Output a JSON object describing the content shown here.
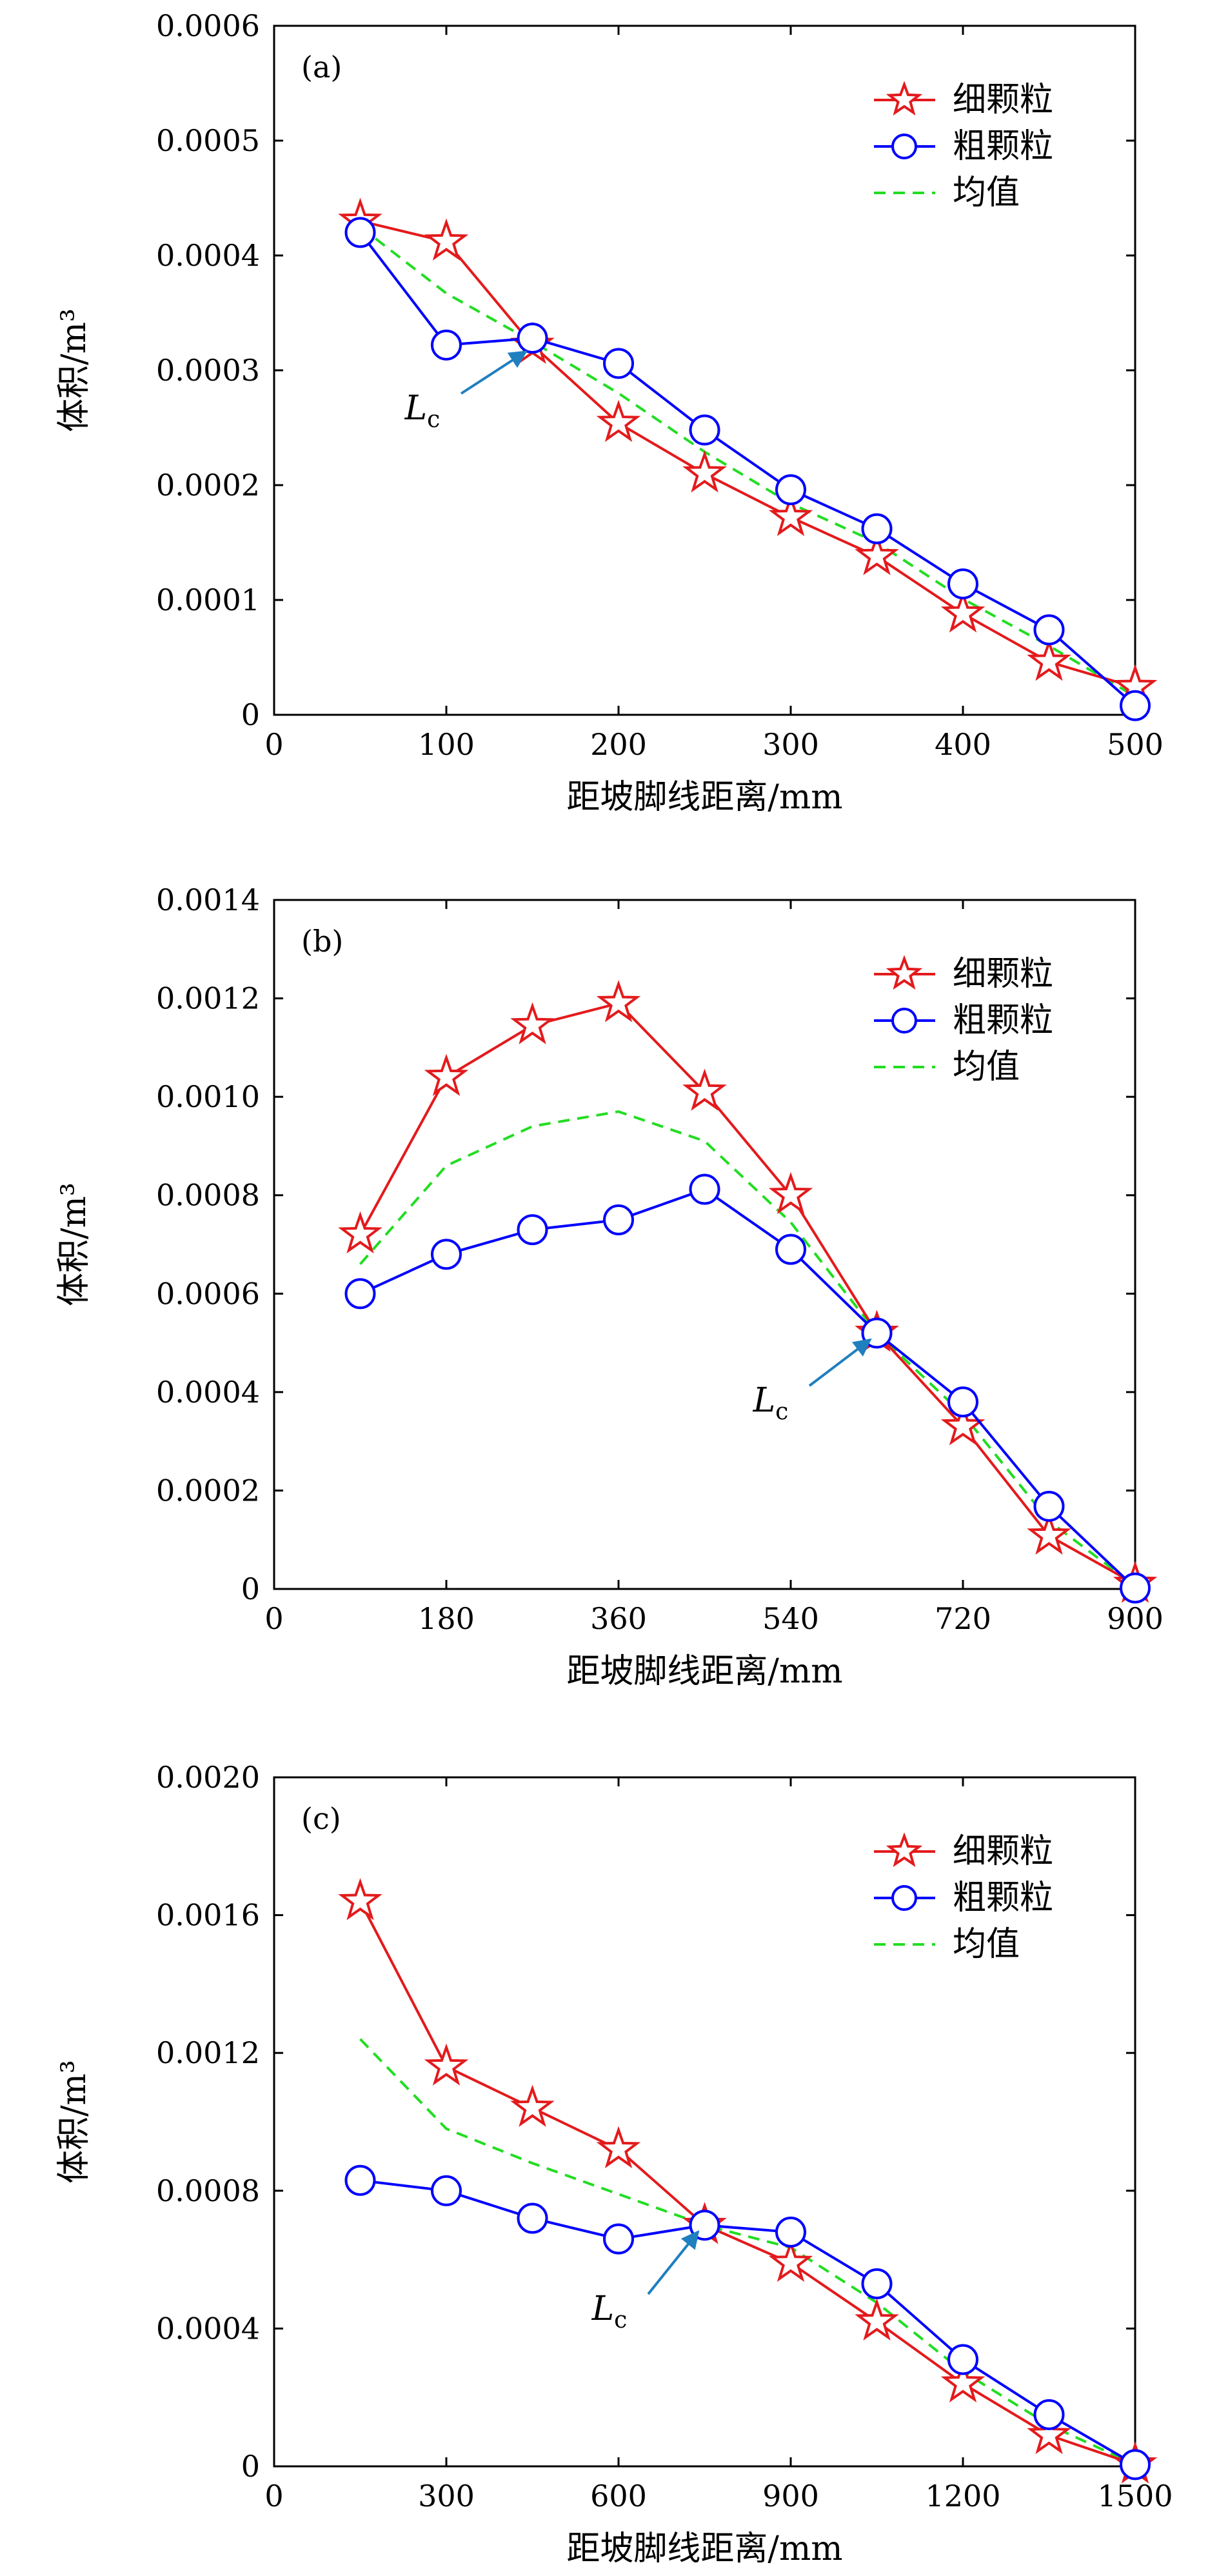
{
  "page": {
    "title": ""
  },
  "colors": {
    "fine": "#e31a1c",
    "coarse": "#0000ff",
    "mean": "#22dd22",
    "arrow": "#1f7fbf",
    "axis": "#000000"
  },
  "legend": {
    "position": "top-right"
  },
  "annotation_marker": "star-and-circle markers",
  "chart_data": [
    {
      "type": "line",
      "panel_label": "(a)",
      "xlabel": "距坡脚线距离/mm",
      "ylabel": "体积/m³",
      "annotation": {
        "label": "L",
        "subscript": "c",
        "x": 150
      },
      "xlim": [
        0,
        500
      ],
      "ylim": [
        0,
        0.0006
      ],
      "xticks": [
        0,
        100,
        200,
        300,
        400,
        500
      ],
      "xtick_labels": [
        "0",
        "100",
        "200",
        "300",
        "400",
        "500"
      ],
      "yticks": [
        0,
        0.0001,
        0.0002,
        0.0003,
        0.0004,
        0.0005,
        0.0006
      ],
      "ytick_labels": [
        "0",
        "0.0001",
        "0.0002",
        "0.0003",
        "0.0004",
        "0.0005",
        "0.0006"
      ],
      "grid": false,
      "x": [
        50,
        100,
        150,
        200,
        250,
        300,
        350,
        400,
        450,
        500
      ],
      "series": [
        {
          "name": "细颗粒",
          "marker": "star",
          "values": [
            0.00043,
            0.000412,
            0.000322,
            0.000254,
            0.00021,
            0.000172,
            0.000138,
            8.8e-05,
            4.6e-05,
            2.4e-05
          ]
        },
        {
          "name": "粗颗粒",
          "marker": "circle",
          "values": [
            0.00042,
            0.000322,
            0.000328,
            0.000306,
            0.000248,
            0.000196,
            0.000162,
            0.000114,
            7.4e-05,
            8e-06
          ]
        },
        {
          "name": "均值",
          "marker": "none",
          "dashed": true,
          "values": [
            0.000425,
            0.000367,
            0.000325,
            0.00028,
            0.000229,
            0.000184,
            0.00015,
            0.000101,
            6e-05,
            1.6e-05
          ]
        }
      ]
    },
    {
      "type": "line",
      "panel_label": "(b)",
      "xlabel": "距坡脚线距离/mm",
      "ylabel": "体积/m³",
      "annotation": {
        "label": "L",
        "subscript": "c",
        "x": 630
      },
      "xlim": [
        0,
        900
      ],
      "ylim": [
        0,
        0.0014
      ],
      "xticks": [
        0,
        180,
        360,
        540,
        720,
        900
      ],
      "xtick_labels": [
        "0",
        "180",
        "360",
        "540",
        "720",
        "900"
      ],
      "yticks": [
        0,
        0.0002,
        0.0004,
        0.0006,
        0.0008,
        0.001,
        0.0012,
        0.0014
      ],
      "ytick_labels": [
        "0",
        "0.0002",
        "0.0004",
        "0.0006",
        "0.0008",
        "0.0010",
        "0.0012",
        "0.0014"
      ],
      "grid": false,
      "x": [
        90,
        180,
        270,
        360,
        450,
        540,
        630,
        720,
        810,
        900
      ],
      "series": [
        {
          "name": "细颗粒",
          "marker": "star",
          "values": [
            0.00072,
            0.00104,
            0.001145,
            0.00119,
            0.00101,
            0.0008,
            0.00052,
            0.00033,
            0.000108,
            1e-05
          ]
        },
        {
          "name": "粗颗粒",
          "marker": "circle",
          "values": [
            0.0006,
            0.00068,
            0.00073,
            0.00075,
            0.000812,
            0.00069,
            0.00052,
            0.00038,
            0.000168,
            2e-06
          ]
        },
        {
          "name": "均值",
          "marker": "none",
          "dashed": true,
          "values": [
            0.00066,
            0.00086,
            0.00094,
            0.00097,
            0.00091,
            0.000745,
            0.00052,
            0.000355,
            0.000138,
            6e-06
          ]
        }
      ]
    },
    {
      "type": "line",
      "panel_label": "(c)",
      "xlabel": "距坡脚线距离/mm",
      "ylabel": "体积/m³",
      "annotation": {
        "label": "L",
        "subscript": "c",
        "x": 750
      },
      "xlim": [
        0,
        1500
      ],
      "ylim": [
        0,
        0.002
      ],
      "xticks": [
        0,
        300,
        600,
        900,
        1200,
        1500
      ],
      "xtick_labels": [
        "0",
        "300",
        "600",
        "900",
        "1200",
        "1500"
      ],
      "yticks": [
        0,
        0.0004,
        0.0008,
        0.0012,
        0.0016,
        0.002
      ],
      "ytick_labels": [
        "0",
        "0.0004",
        "0.0008",
        "0.0012",
        "0.0016",
        "0.0020"
      ],
      "grid": false,
      "x": [
        150,
        300,
        450,
        600,
        750,
        900,
        1050,
        1200,
        1350,
        1500
      ],
      "series": [
        {
          "name": "细颗粒",
          "marker": "star",
          "values": [
            0.00164,
            0.00116,
            0.00104,
            0.00092,
            0.0007,
            0.00059,
            0.00042,
            0.00024,
            9e-05,
            5e-06
          ]
        },
        {
          "name": "粗颗粒",
          "marker": "circle",
          "values": [
            0.00083,
            0.0008,
            0.00072,
            0.00066,
            0.0007,
            0.00068,
            0.00053,
            0.00031,
            0.00015,
            5e-06
          ]
        },
        {
          "name": "均值",
          "marker": "none",
          "dashed": true,
          "values": [
            0.00124,
            0.00098,
            0.00088,
            0.00079,
            0.0007,
            0.000635,
            0.000475,
            0.000275,
            0.00012,
            5e-06
          ]
        }
      ]
    }
  ]
}
